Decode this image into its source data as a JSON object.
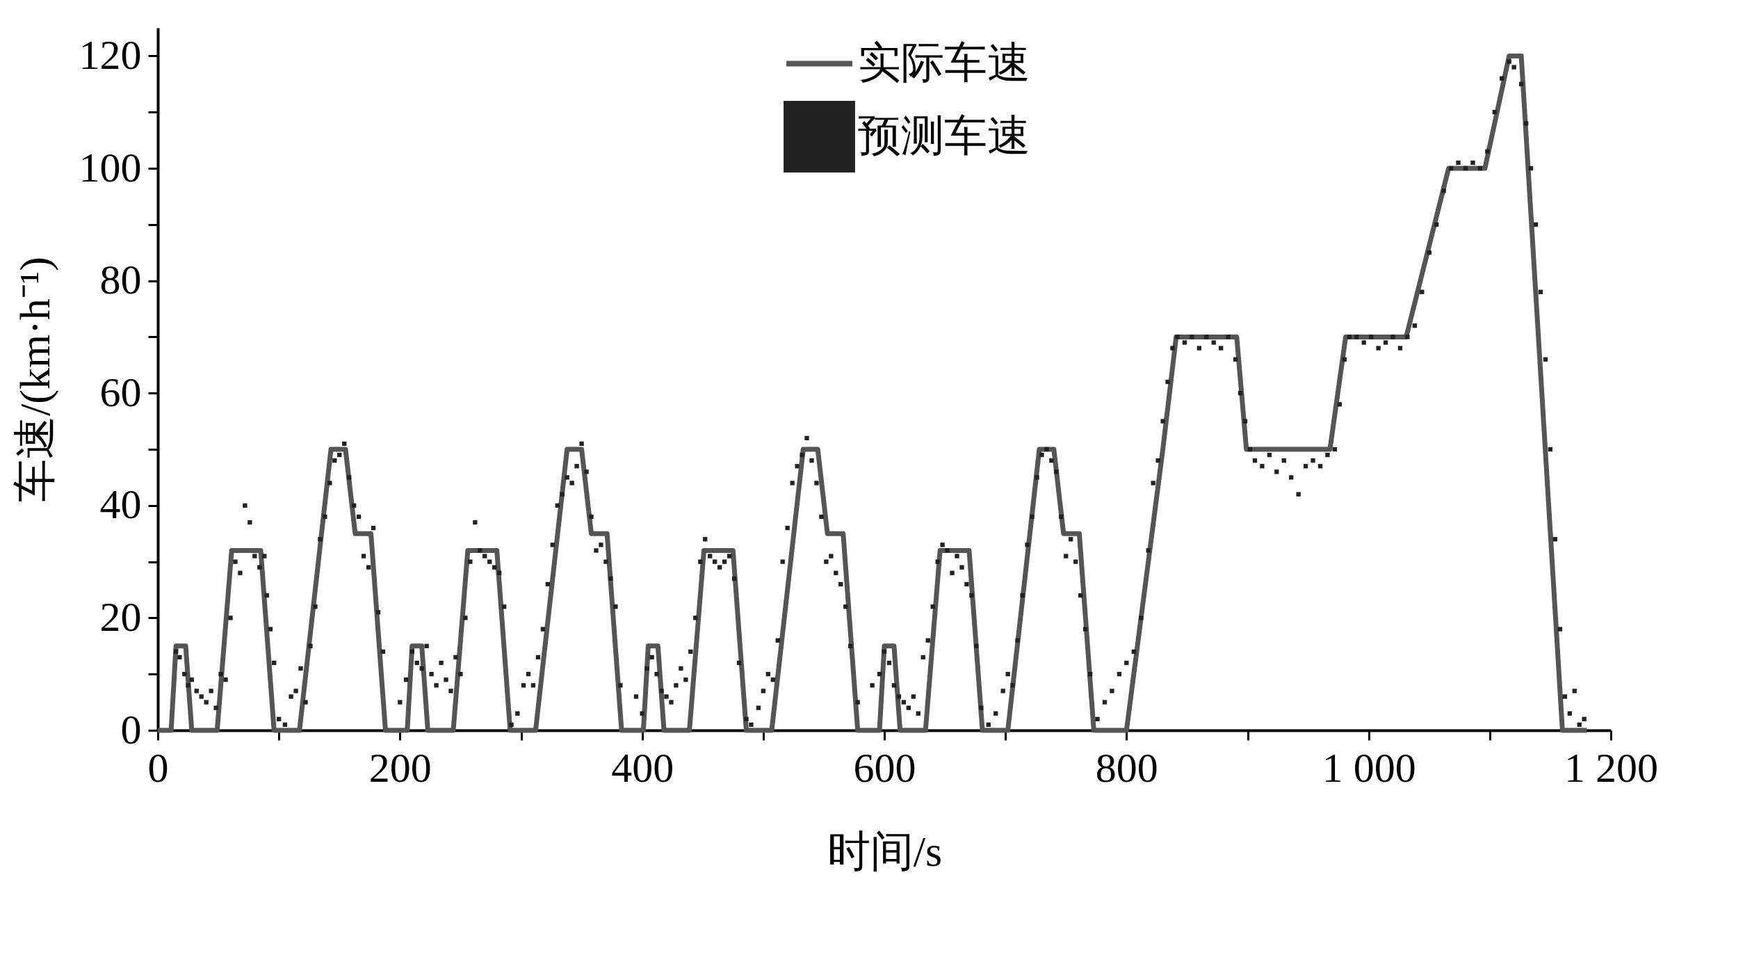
{
  "chart_data": {
    "type": "line",
    "xlabel": "时间/s",
    "ylabel": "车速/(km·h⁻¹)",
    "xlim": [
      0,
      1200
    ],
    "ylim": [
      0,
      125
    ],
    "xticks": [
      0,
      {
        "value": 100,
        "label": null
      },
      200,
      {
        "value": 300,
        "label": null
      },
      400,
      {
        "value": 500,
        "label": null
      },
      600,
      {
        "value": 700,
        "label": null
      },
      800,
      {
        "value": 900,
        "label": null
      },
      {
        "value": 1000,
        "label": "1 000"
      },
      {
        "value": 1100,
        "label": null
      },
      {
        "value": 1200,
        "label": "1 200"
      }
    ],
    "yticks": [
      0,
      {
        "value": 10,
        "label": null
      },
      20,
      {
        "value": 30,
        "label": null
      },
      40,
      {
        "value": 50,
        "label": null
      },
      60,
      {
        "value": 70,
        "label": null
      },
      80,
      {
        "value": 90,
        "label": null
      },
      100,
      {
        "value": 110,
        "label": null
      },
      120
    ],
    "grid": false,
    "legend": "top",
    "series": [
      {
        "name": "实际车速",
        "color": "#555555",
        "line_style": "solid",
        "marker": "none",
        "x": [
          0,
          11,
          15,
          23,
          28,
          49,
          61,
          85,
          96,
          117,
          143,
          155,
          163,
          176,
          188,
          206,
          210,
          218,
          223,
          244,
          256,
          280,
          291,
          312,
          338,
          350,
          358,
          371,
          383,
          401,
          405,
          413,
          418,
          439,
          451,
          475,
          486,
          507,
          533,
          545,
          553,
          566,
          578,
          596,
          600,
          608,
          613,
          634,
          646,
          670,
          681,
          702,
          728,
          740,
          748,
          761,
          773,
          800,
          830,
          841,
          891,
          899,
          968,
          981,
          1031,
          1066,
          1096,
          1116,
          1126,
          1160,
          1180
        ],
        "values": [
          0,
          0,
          15,
          15,
          0,
          0,
          32,
          32,
          0,
          0,
          50,
          50,
          35,
          35,
          0,
          0,
          15,
          15,
          0,
          0,
          32,
          32,
          0,
          0,
          50,
          50,
          35,
          35,
          0,
          0,
          15,
          15,
          0,
          0,
          32,
          32,
          0,
          0,
          50,
          50,
          35,
          35,
          0,
          0,
          15,
          15,
          0,
          0,
          32,
          32,
          0,
          0,
          50,
          50,
          35,
          35,
          0,
          0,
          50,
          70,
          70,
          50,
          50,
          70,
          70,
          100,
          100,
          120,
          120,
          0,
          0
        ]
      },
      {
        "name": "预测车速",
        "type": "scatter",
        "color": "#222222",
        "marker": "square",
        "x": [
          15,
          18,
          22,
          25,
          28,
          32,
          36,
          40,
          44,
          48,
          52,
          56,
          60,
          64,
          68,
          72,
          76,
          80,
          84,
          88,
          90,
          93,
          96,
          100,
          105,
          110,
          114,
          118,
          122,
          126,
          130,
          134,
          138,
          142,
          146,
          150,
          154,
          158,
          162,
          166,
          170,
          174,
          178,
          182,
          186,
          200,
          205,
          210,
          214,
          218,
          222,
          226,
          230,
          234,
          238,
          242,
          246,
          250,
          254,
          258,
          262,
          266,
          270,
          274,
          278,
          282,
          286,
          292,
          297,
          302,
          306,
          310,
          314,
          318,
          322,
          326,
          330,
          334,
          338,
          342,
          346,
          350,
          354,
          358,
          362,
          366,
          370,
          374,
          378,
          382,
          395,
          400,
          404,
          408,
          412,
          416,
          420,
          424,
          428,
          432,
          436,
          440,
          444,
          448,
          452,
          456,
          460,
          464,
          468,
          472,
          476,
          480,
          486,
          490,
          496,
          500,
          504,
          508,
          512,
          516,
          520,
          524,
          528,
          532,
          536,
          540,
          544,
          548,
          552,
          556,
          560,
          564,
          568,
          572,
          578,
          590,
          596,
          600,
          604,
          608,
          612,
          616,
          620,
          624,
          628,
          632,
          636,
          640,
          644,
          648,
          652,
          656,
          660,
          664,
          668,
          672,
          676,
          680,
          686,
          692,
          698,
          702,
          706,
          710,
          714,
          718,
          722,
          726,
          730,
          734,
          738,
          742,
          746,
          750,
          754,
          758,
          762,
          766,
          770,
          776,
          782,
          788,
          794,
          800,
          806,
          812,
          818,
          822,
          826,
          830,
          834,
          838,
          842,
          848,
          854,
          860,
          866,
          872,
          878,
          884,
          890,
          894,
          898,
          902,
          906,
          912,
          918,
          924,
          930,
          936,
          942,
          948,
          954,
          960,
          966,
          972,
          976,
          980,
          984,
          990,
          996,
          1002,
          1008,
          1014,
          1020,
          1026,
          1032,
          1038,
          1044,
          1050,
          1056,
          1062,
          1068,
          1074,
          1080,
          1086,
          1092,
          1098,
          1104,
          1110,
          1116,
          1120,
          1126,
          1130,
          1134,
          1138,
          1142,
          1146,
          1150,
          1154,
          1158,
          1162,
          1166,
          1170,
          1174,
          1178
        ],
        "values": [
          14,
          13,
          10,
          8,
          9,
          7,
          6,
          5,
          7,
          4,
          10,
          9,
          20,
          30,
          28,
          40,
          37,
          31,
          29,
          31,
          24,
          18,
          12,
          2,
          1,
          6,
          7,
          11,
          5,
          15,
          22,
          34,
          38,
          44,
          48,
          49,
          51,
          45,
          40,
          38,
          31,
          29,
          36,
          21,
          14,
          5,
          9,
          14,
          12,
          11,
          15,
          10,
          8,
          12,
          9,
          7,
          13,
          10,
          20,
          30,
          37,
          32,
          31,
          30,
          29,
          28,
          22,
          1,
          3,
          8,
          10,
          8,
          13,
          18,
          26,
          33,
          40,
          42,
          45,
          44,
          47,
          51,
          46,
          38,
          32,
          33,
          30,
          27,
          22,
          8,
          6,
          3,
          11,
          13,
          10,
          7,
          6,
          5,
          8,
          11,
          9,
          14,
          20,
          30,
          34,
          31,
          30,
          29,
          30,
          31,
          27,
          12,
          2,
          1,
          4,
          7,
          10,
          9,
          16,
          30,
          36,
          44,
          47,
          49,
          52,
          48,
          44,
          38,
          30,
          31,
          28,
          26,
          22,
          15,
          5,
          8,
          10,
          14,
          12,
          8,
          6,
          5,
          4,
          6,
          3,
          13,
          16,
          22,
          30,
          33,
          32,
          28,
          31,
          29,
          26,
          24,
          15,
          4,
          1,
          3,
          7,
          10,
          8,
          16,
          24,
          33,
          38,
          45,
          49,
          50,
          48,
          46,
          38,
          31,
          34,
          30,
          24,
          18,
          10,
          2,
          5,
          7,
          10,
          12,
          14,
          20,
          32,
          44,
          48,
          55,
          62,
          68,
          70,
          69,
          70,
          68,
          70,
          69,
          68,
          70,
          66,
          60,
          55,
          50,
          48,
          47,
          49,
          46,
          48,
          45,
          42,
          47,
          48,
          47,
          49,
          50,
          58,
          66,
          70,
          70,
          69,
          70,
          68,
          69,
          70,
          68,
          70,
          72,
          78,
          85,
          90,
          96,
          100,
          101,
          100,
          101,
          100,
          103,
          110,
          116,
          119,
          118,
          115,
          108,
          100,
          90,
          78,
          66,
          50,
          34,
          18,
          6,
          3,
          7,
          1,
          2
        ]
      }
    ]
  }
}
